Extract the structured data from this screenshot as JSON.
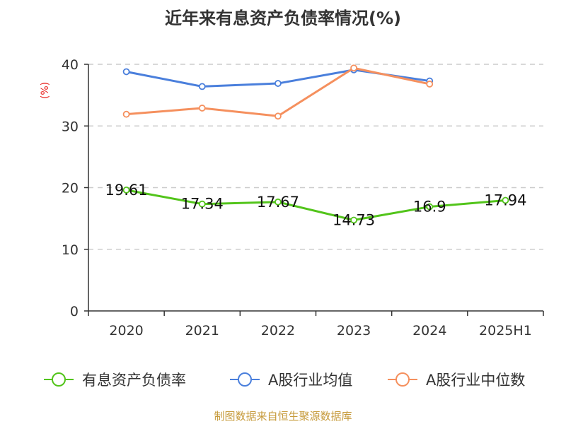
{
  "chart_data": {
    "type": "line",
    "title": "近年来有息资产负债率情况(%)",
    "ylabel": "(%)",
    "xlabel": "",
    "categories": [
      "2020",
      "2021",
      "2022",
      "2023",
      "2024",
      "2025H1"
    ],
    "ylim": [
      0,
      40
    ],
    "yticks": [
      0,
      10,
      20,
      30,
      40
    ],
    "grid": true,
    "legend_position": "bottom",
    "series": [
      {
        "name": "有息资产负债率",
        "color": "#52c41a",
        "values": [
          19.61,
          17.34,
          17.67,
          14.73,
          16.9,
          17.94
        ],
        "labels": [
          "19.61",
          "17.34",
          "17.67",
          "14.73",
          "16.9",
          "17.94"
        ],
        "show_labels": true
      },
      {
        "name": "A股行业均值",
        "color": "#4a7fdc",
        "values": [
          38.8,
          36.4,
          36.9,
          39.1,
          37.3,
          null
        ],
        "show_labels": false
      },
      {
        "name": "A股行业中位数",
        "color": "#f5905e",
        "values": [
          31.9,
          32.9,
          31.6,
          39.4,
          36.8,
          null
        ],
        "show_labels": false
      }
    ]
  },
  "source": "制图数据来自恒生聚源数据库"
}
